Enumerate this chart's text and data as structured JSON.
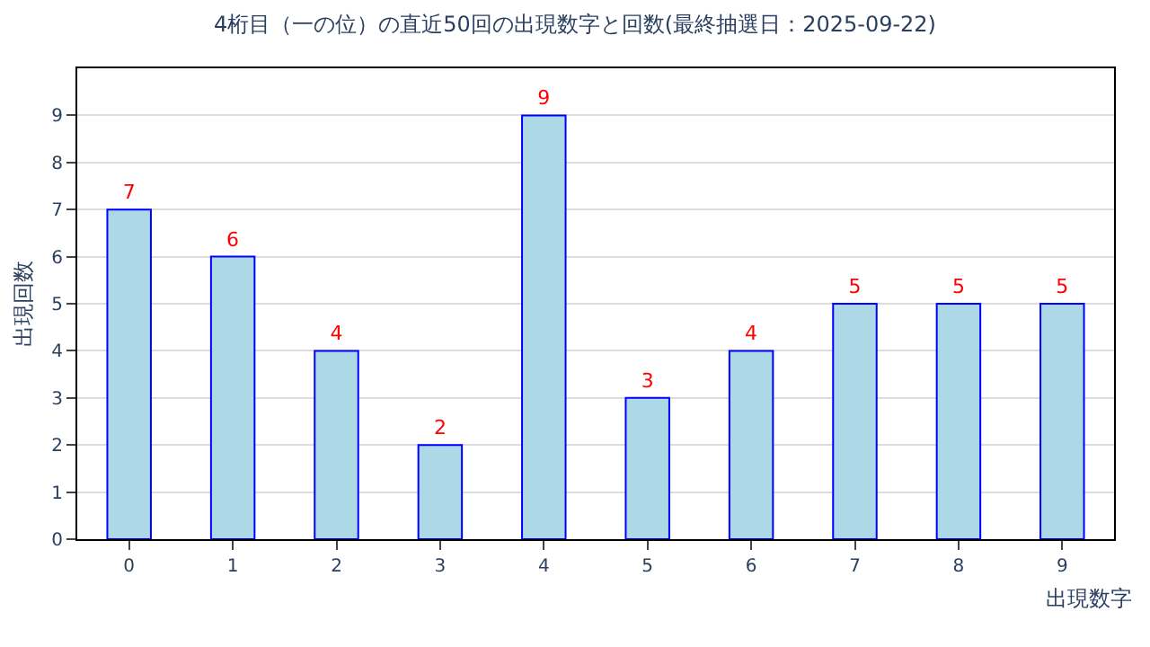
{
  "chart_data": {
    "type": "bar",
    "title": "4桁目（一の位）の直近50回の出現数字と回数(最終抽選日：2025-09-22)",
    "xlabel": "出現数字",
    "ylabel": "出現回数",
    "categories": [
      "0",
      "1",
      "2",
      "3",
      "4",
      "5",
      "6",
      "7",
      "8",
      "9"
    ],
    "values": [
      7,
      6,
      4,
      2,
      9,
      3,
      4,
      5,
      5,
      5
    ],
    "color": "#add8e6",
    "ylim": [
      0,
      10
    ],
    "yticks": [
      0,
      1,
      2,
      3,
      4,
      5,
      6,
      7,
      8,
      9
    ],
    "grid": "y",
    "data_labels": true,
    "legend": false
  }
}
